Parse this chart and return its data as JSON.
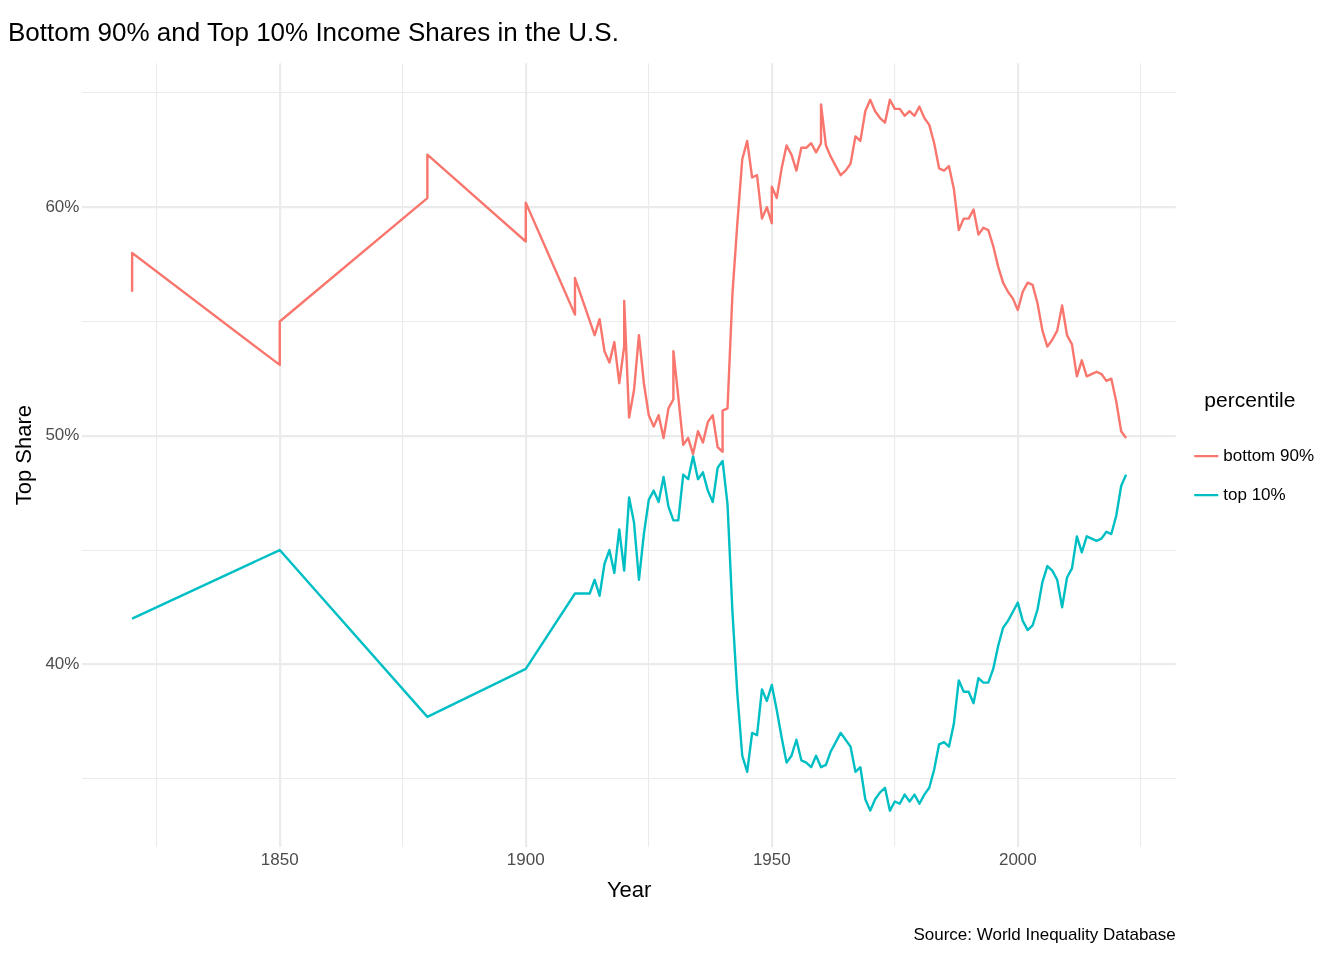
{
  "chart_data": {
    "type": "line",
    "title": "Bottom 90% and Top 10% Income Shares in the U.S.",
    "xlabel": "Year",
    "ylabel": "Top Share",
    "legend_title": "percentile",
    "legend": "right",
    "grid": true,
    "marker": "none",
    "line_style": "solid",
    "xlim": [
      1809.9,
      2032.1
    ],
    "xticks": [
      {
        "value": 1825,
        "label": null
      },
      1850,
      {
        "value": 1875,
        "label": null
      },
      1900,
      {
        "value": 1925,
        "label": null
      },
      1950,
      {
        "value": 1975,
        "label": null
      },
      2000,
      {
        "value": 2025,
        "label": null
      }
    ],
    "ylim": [
      32.0,
      66.3
    ],
    "yticks": [
      {
        "value": 35,
        "label": null
      },
      {
        "value": 40,
        "label": "40%"
      },
      {
        "value": 45,
        "label": null
      },
      {
        "value": 50,
        "label": "50%"
      },
      {
        "value": 55,
        "label": null
      },
      {
        "value": 60,
        "label": "60%"
      },
      {
        "value": 65,
        "label": null
      }
    ],
    "annotations": [
      "Source: World Inequality Database"
    ],
    "series": [
      {
        "name": "bottom 90%",
        "color": "#f8766d",
        "x": [
          1820,
          1820,
          1850,
          1850,
          1880,
          1880,
          1900,
          1900,
          1910,
          1910,
          1914,
          1915,
          1916,
          1917,
          1918,
          1919,
          1920,
          1920,
          1921,
          1922,
          1923,
          1924,
          1925,
          1926,
          1927,
          1928,
          1929,
          1930,
          1930,
          1931,
          1932,
          1933,
          1934,
          1935,
          1936,
          1937,
          1938,
          1939,
          1940,
          1940,
          1941,
          1942,
          1943,
          1944,
          1945,
          1946,
          1947,
          1948,
          1949,
          1950,
          1950,
          1951,
          1952,
          1953,
          1954,
          1955,
          1956,
          1957,
          1958,
          1959,
          1960,
          1960,
          1961,
          1962,
          1963,
          1964,
          1965,
          1966,
          1967,
          1968,
          1969,
          1970,
          1971,
          1972,
          1973,
          1974,
          1975,
          1976,
          1977,
          1978,
          1979,
          1980,
          1981,
          1982,
          1983,
          1984,
          1985,
          1986,
          1987,
          1988,
          1989,
          1990,
          1991,
          1992,
          1993,
          1994,
          1995,
          1996,
          1997,
          1998,
          1999,
          2000,
          2001,
          2002,
          2003,
          2004,
          2005,
          2006,
          2007,
          2008,
          2009,
          2010,
          2011,
          2012,
          2013,
          2014,
          2015,
          2016,
          2017,
          2018,
          2019,
          2020,
          2021,
          2022
        ],
        "values": [
          56.3,
          58.0,
          53.1,
          55.0,
          60.4,
          62.3,
          58.5,
          60.2,
          55.3,
          56.9,
          54.4,
          55.1,
          53.7,
          53.2,
          54.1,
          52.3,
          53.9,
          55.9,
          50.8,
          52.0,
          54.4,
          52.3,
          50.9,
          50.4,
          50.9,
          49.9,
          51.2,
          51.6,
          53.7,
          51.7,
          49.6,
          49.9,
          49.2,
          50.2,
          49.7,
          50.6,
          50.9,
          49.5,
          49.3,
          51.1,
          51.2,
          56.2,
          59.3,
          62.1,
          62.9,
          61.3,
          61.4,
          59.5,
          60.0,
          59.3,
          60.9,
          60.4,
          61.7,
          62.7,
          62.3,
          61.6,
          62.6,
          62.6,
          62.8,
          62.4,
          62.8,
          64.5,
          62.7,
          62.2,
          61.8,
          61.4,
          61.6,
          61.9,
          63.1,
          62.9,
          64.2,
          64.7,
          64.2,
          63.9,
          63.7,
          64.7,
          64.3,
          64.3,
          64.0,
          64.2,
          64.0,
          64.4,
          63.9,
          63.6,
          62.8,
          61.7,
          61.6,
          61.8,
          60.8,
          59.0,
          59.5,
          59.5,
          59.9,
          58.8,
          59.1,
          59.0,
          58.3,
          57.4,
          56.7,
          56.3,
          56.0,
          55.5,
          56.3,
          56.7,
          56.6,
          55.8,
          54.6,
          53.9,
          54.2,
          54.6,
          55.7,
          54.4,
          54.0,
          52.6,
          53.3,
          52.6,
          52.7,
          52.8,
          52.7,
          52.4,
          52.5,
          51.5,
          50.2,
          49.9
        ]
      },
      {
        "name": "top 10%",
        "color": "#00bfc4",
        "x": [
          1820,
          1850,
          1880,
          1900,
          1910,
          1913,
          1914,
          1915,
          1916,
          1917,
          1918,
          1919,
          1920,
          1921,
          1922,
          1923,
          1924,
          1925,
          1926,
          1927,
          1928,
          1929,
          1930,
          1931,
          1932,
          1933,
          1934,
          1935,
          1936,
          1937,
          1938,
          1939,
          1940,
          1941,
          1942,
          1943,
          1944,
          1945,
          1946,
          1947,
          1948,
          1949,
          1950,
          1951,
          1952,
          1953,
          1954,
          1955,
          1956,
          1957,
          1958,
          1959,
          1960,
          1961,
          1962,
          1963,
          1964,
          1965,
          1966,
          1967,
          1968,
          1969,
          1970,
          1971,
          1972,
          1973,
          1974,
          1975,
          1976,
          1977,
          1978,
          1979,
          1980,
          1981,
          1982,
          1983,
          1984,
          1985,
          1986,
          1987,
          1988,
          1989,
          1990,
          1991,
          1992,
          1993,
          1994,
          1995,
          1996,
          1997,
          1998,
          1999,
          2000,
          2001,
          2002,
          2003,
          2004,
          2005,
          2006,
          2007,
          2008,
          2009,
          2010,
          2011,
          2012,
          2013,
          2014,
          2015,
          2016,
          2017,
          2018,
          2019,
          2020,
          2021,
          2022
        ],
        "values": [
          42.0,
          45.0,
          37.7,
          39.8,
          43.1,
          43.1,
          43.7,
          43.0,
          44.4,
          45.0,
          44.0,
          45.9,
          44.1,
          47.3,
          46.2,
          43.7,
          45.7,
          47.2,
          47.6,
          47.1,
          48.2,
          46.9,
          46.3,
          46.3,
          48.3,
          48.1,
          49.1,
          48.1,
          48.4,
          47.6,
          47.1,
          48.6,
          48.9,
          47.0,
          42.3,
          38.7,
          36.0,
          35.3,
          37.0,
          36.9,
          38.9,
          38.4,
          39.1,
          38.0,
          36.8,
          35.7,
          36.0,
          36.7,
          35.8,
          35.7,
          35.5,
          36.0,
          35.5,
          35.6,
          36.2,
          36.6,
          37.0,
          36.7,
          36.4,
          35.3,
          35.5,
          34.1,
          33.6,
          34.1,
          34.4,
          34.6,
          33.6,
          34.0,
          33.9,
          34.3,
          34.0,
          34.3,
          33.9,
          34.3,
          34.6,
          35.4,
          36.5,
          36.6,
          36.4,
          37.4,
          39.3,
          38.8,
          38.8,
          38.3,
          39.4,
          39.2,
          39.2,
          39.8,
          40.8,
          41.6,
          41.9,
          42.3,
          42.7,
          41.9,
          41.5,
          41.7,
          42.4,
          43.6,
          44.3,
          44.1,
          43.7,
          42.5,
          43.8,
          44.2,
          45.6,
          44.9,
          45.6,
          45.5,
          45.4,
          45.5,
          45.8,
          45.7,
          46.5,
          47.8,
          48.3
        ]
      }
    ]
  }
}
